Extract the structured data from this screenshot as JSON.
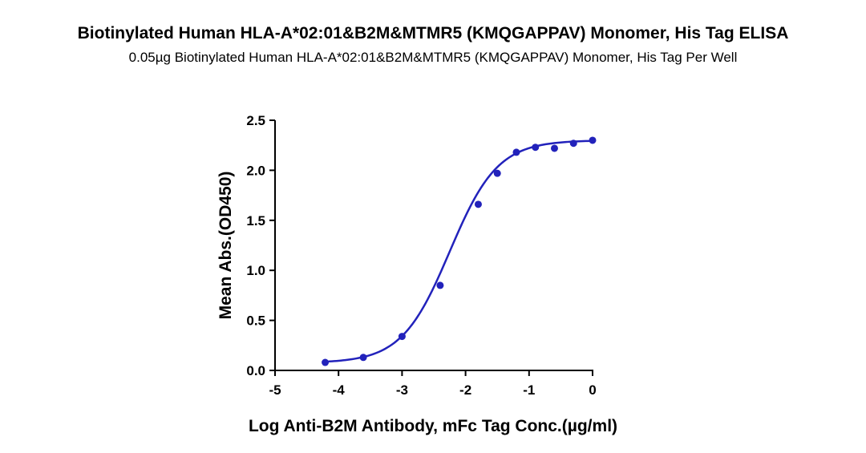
{
  "chart_data": {
    "type": "scatter",
    "title": "Biotinylated Human HLA-A*02:01&B2M&MTMR5 (KMQGAPPAV) Monomer, His Tag ELISA",
    "subtitle": "0.05µg Biotinylated Human HLA-A*02:01&B2M&MTMR5 (KMQGAPPAV) Monomer, His Tag Per Well",
    "xlabel": "Log Anti-B2M Antibody, mFc Tag Conc.(µg/ml)",
    "ylabel": "Mean Abs.(OD450)",
    "xlim": [
      -5,
      0
    ],
    "ylim": [
      0,
      2.5
    ],
    "xticks": [
      -5,
      -4,
      -3,
      -2,
      -1,
      0
    ],
    "xtick_labels": [
      "-5",
      "-4",
      "-3",
      "-2",
      "-1",
      "0"
    ],
    "yticks": [
      0,
      0.5,
      1.0,
      1.5,
      2.0,
      2.5
    ],
    "ytick_labels": [
      "0.0",
      "0.5",
      "1.0",
      "1.5",
      "2.0",
      "2.5"
    ],
    "grid": false,
    "color": "#2222bb",
    "series": [
      {
        "x": [
          -4.21,
          -3.61,
          -3.0,
          -2.4,
          -1.8,
          -1.5,
          -1.2,
          -0.9,
          -0.6,
          -0.3,
          0.0
        ],
        "y": [
          0.08,
          0.13,
          0.34,
          0.85,
          1.66,
          1.97,
          2.18,
          2.23,
          2.22,
          2.27,
          2.3
        ]
      }
    ],
    "fit_curve": {
      "model": "4PL",
      "bottom": 0.075,
      "top": 2.3,
      "log_ec50": -2.25,
      "hill_slope": 1.15,
      "x_range": [
        -4.21,
        0.0
      ]
    }
  }
}
